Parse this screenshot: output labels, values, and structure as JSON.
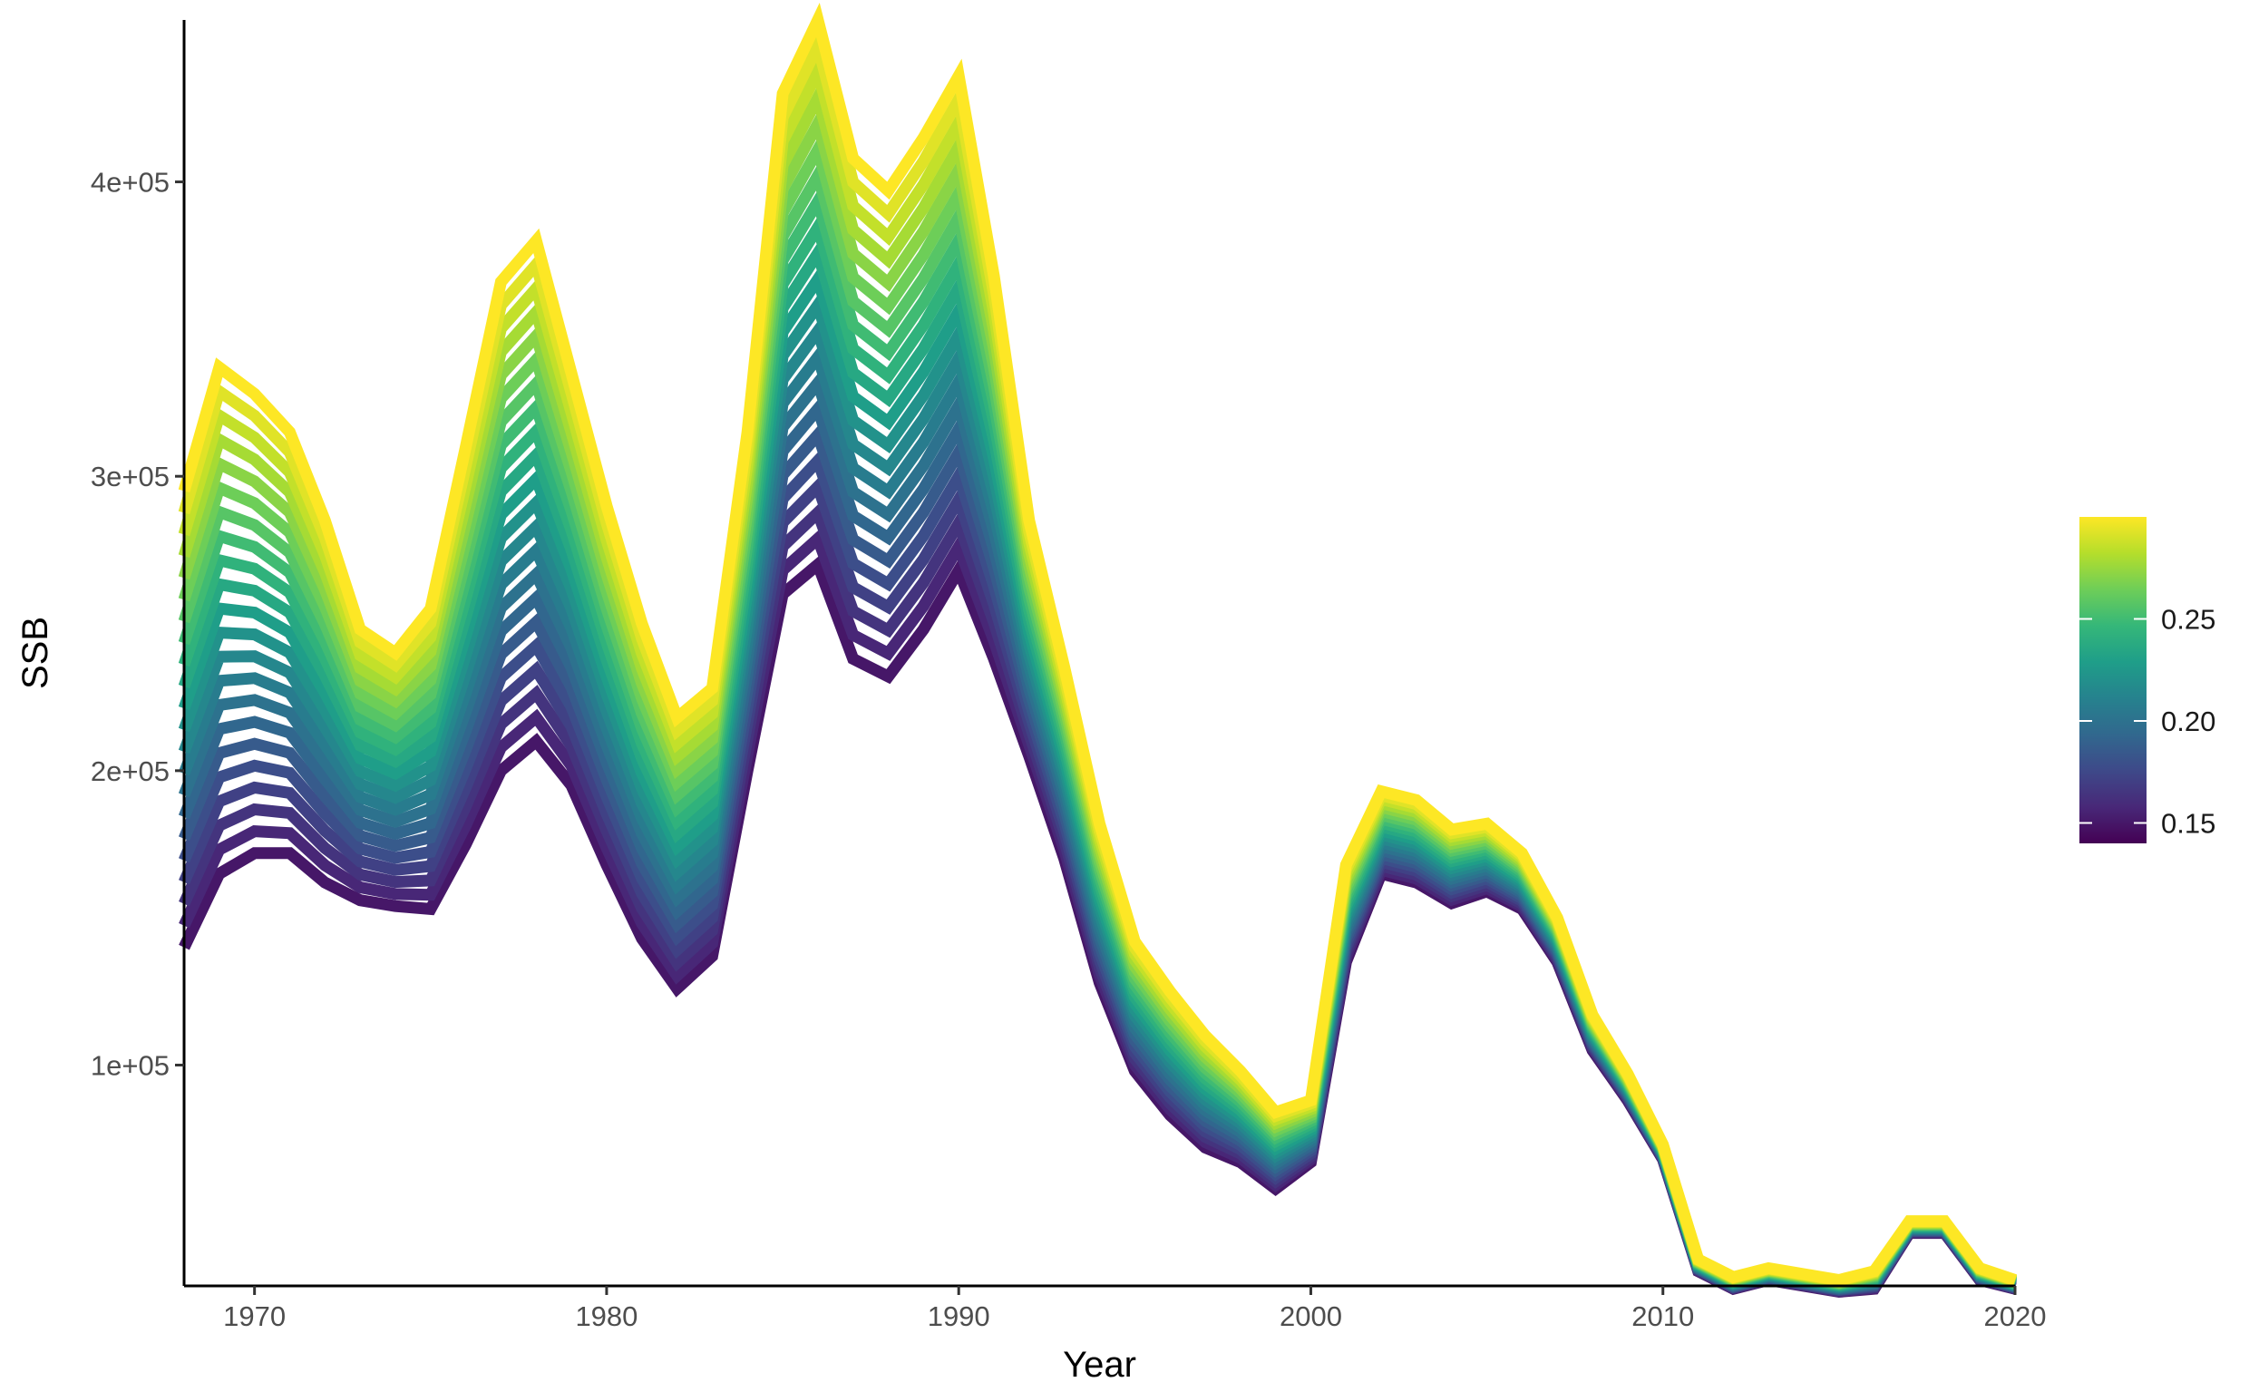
{
  "chart_data": {
    "type": "line",
    "xlabel": "Year",
    "ylabel": "SSB",
    "xlim": [
      1968,
      2020
    ],
    "ylim": [
      25000,
      455000
    ],
    "x_ticks": [
      1970,
      1980,
      1990,
      2000,
      2010,
      2020
    ],
    "x_tick_labels": [
      "1970",
      "1980",
      "1990",
      "2000",
      "2010",
      "2020"
    ],
    "y_ticks": [
      100000,
      200000,
      300000,
      400000
    ],
    "y_tick_labels": [
      "1e+05",
      "2e+05",
      "3e+05",
      "4e+05"
    ],
    "grid": false,
    "color_scale": {
      "palette": "viridis",
      "min": 0.14,
      "max": 0.3,
      "breaks": [
        0.15,
        0.2,
        0.25
      ],
      "break_labels": [
        "0.15",
        "0.20",
        "0.25"
      ],
      "colors": [
        "#440154",
        "#482878",
        "#3e4989",
        "#31688e",
        "#26828e",
        "#1f9e89",
        "#35b779",
        "#6ece58",
        "#b5de2b",
        "#fde725"
      ],
      "legend_position": "right"
    },
    "years": [
      1968,
      1969,
      1970,
      1971,
      1972,
      1973,
      1974,
      1975,
      1976,
      1977,
      1978,
      1979,
      1980,
      1981,
      1982,
      1983,
      1984,
      1985,
      1986,
      1987,
      1988,
      1989,
      1990,
      1991,
      1992,
      1993,
      1994,
      1995,
      1996,
      1997,
      1998,
      1999,
      2000,
      2001,
      2002,
      2003,
      2004,
      2005,
      2006,
      2007,
      2008,
      2009,
      2010,
      2011,
      2012,
      2013,
      2014,
      2015,
      2016,
      2017,
      2018,
      2019,
      2020
    ],
    "series": [
      {
        "m": 0.15,
        "values": [
          140000,
          165000,
          172000,
          172000,
          162000,
          156000,
          154000,
          153000,
          175000,
          200000,
          210000,
          195000,
          168000,
          143000,
          126000,
          137000,
          200000,
          260000,
          270000,
          238000,
          232000,
          248000,
          268000,
          238000,
          205000,
          170000,
          128000,
          98000,
          83000,
          72000,
          67000,
          58000,
          67000,
          135000,
          165000,
          162000,
          155000,
          159000,
          153000,
          135000,
          105000,
          88000,
          68000,
          30000,
          24000,
          27000,
          25000,
          23000,
          24000,
          43000,
          43000,
          27000,
          24000
        ]
      },
      {
        "m": 0.3,
        "values": [
          295000,
          337000,
          328000,
          315000,
          285000,
          248000,
          240000,
          255000,
          310000,
          366000,
          380000,
          335000,
          290000,
          250000,
          218000,
          228000,
          315000,
          430000,
          455000,
          408000,
          397000,
          415000,
          436000,
          368000,
          285000,
          235000,
          182000,
          142000,
          125000,
          110000,
          98000,
          84000,
          88000,
          168000,
          193000,
          190000,
          180000,
          182000,
          172000,
          150000,
          117000,
          97000,
          73000,
          34000,
          28000,
          31000,
          29000,
          27000,
          30000,
          47000,
          47000,
          31000,
          27000
        ]
      }
    ],
    "n_series": 22
  }
}
